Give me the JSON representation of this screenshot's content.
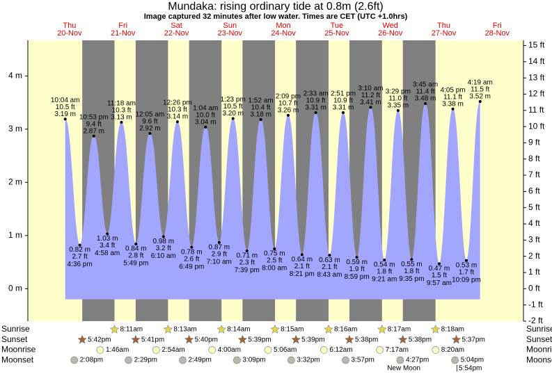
{
  "chart_data": {
    "type": "line",
    "title": "Mundaka: rising  ordinary tide at 0.8m (2.6ft)",
    "subtitle": "Image captured 32 minutes after low water. Times are CET (UTC +1.0hrs)",
    "days": [
      "Thu",
      "Fri",
      "Sat",
      "Sun",
      "Mon",
      "Tue",
      "Wed",
      "Thu",
      "Fri"
    ],
    "dates": [
      "20-Nov",
      "21-Nov",
      "22-Nov",
      "23-Nov",
      "24-Nov",
      "25-Nov",
      "26-Nov",
      "27-Nov",
      "28-Nov"
    ],
    "ylim": [
      -0.61,
      4.67
    ],
    "yticks": [
      {
        "value": 0,
        "label": "0 m"
      },
      {
        "value": 1,
        "label": "1 m"
      },
      {
        "value": 2,
        "label": "2 m"
      },
      {
        "value": 3,
        "label": "3 m"
      },
      {
        "value": 4,
        "label": "4 m"
      }
    ],
    "y2lim": [
      -2,
      15.32
    ],
    "y2ticks": [
      {
        "value": -2,
        "label": "-2 ft"
      },
      {
        "value": -1,
        "label": "-1 ft"
      },
      {
        "value": 0,
        "label": "0 ft"
      },
      {
        "value": 1,
        "label": "1 ft"
      },
      {
        "value": 2,
        "label": "2 ft"
      },
      {
        "value": 3,
        "label": "3 ft"
      },
      {
        "value": 4,
        "label": "4 ft"
      },
      {
        "value": 5,
        "label": "5 ft"
      },
      {
        "value": 6,
        "label": "6 ft"
      },
      {
        "value": 7,
        "label": "7 ft"
      },
      {
        "value": 8,
        "label": "8 ft"
      },
      {
        "value": 9,
        "label": "9 ft"
      },
      {
        "value": 10,
        "label": "10 ft"
      },
      {
        "value": 11,
        "label": "11 ft"
      },
      {
        "value": 12,
        "label": "12 ft"
      },
      {
        "value": 13,
        "label": "13 ft"
      },
      {
        "value": 14,
        "label": "14 ft"
      },
      {
        "value": 15,
        "label": "15 ft"
      }
    ],
    "tide": {
      "color": "#a3a6ff",
      "times": [
        "10:04 am",
        "4:36 pm",
        "10:53 pm",
        "4:58 am",
        "11:18 am",
        "5:49 pm",
        "12:05 am",
        "6:10 am",
        "12:26 pm",
        "6:49 pm",
        "1:04 am",
        "7:10 am",
        "1:23 pm",
        "7:39 pm",
        "1:52 am",
        "8:00 am",
        "2:09 pm",
        "8:21 pm",
        "2:33 am",
        "8:43 am",
        "2:51 pm",
        "8:59 pm",
        "3:10 am",
        "9:21 am",
        "3:29 pm",
        "9:35 pm",
        "3:45 am",
        "9:57 am",
        "4:05 pm",
        "10:09 pm",
        "4:19 am"
      ],
      "values": [
        3.19,
        0.82,
        2.87,
        1.03,
        3.13,
        0.84,
        2.92,
        0.98,
        3.14,
        0.78,
        3.04,
        0.87,
        3.2,
        0.71,
        3.18,
        0.75,
        3.26,
        0.64,
        3.31,
        0.63,
        3.31,
        0.59,
        3.41,
        0.54,
        3.35,
        0.55,
        3.48,
        0.47,
        3.38,
        0.53,
        3.52
      ],
      "value_labels": [
        "3.19 m",
        "0.82 m",
        "2.87 m",
        "1.03 m",
        "3.13 m",
        "0.84 m",
        "2.92 m",
        "0.98 m",
        "3.14 m",
        "0.78 m",
        "3.04 m",
        "0.87 m",
        "3.20 m",
        "0.71 m",
        "3.18 m",
        "0.75 m",
        "3.26 m",
        "0.64 m",
        "3.31 m",
        "0.63 m",
        "3.31 m",
        "0.59 m",
        "3.41 m",
        "0.54 m",
        "3.35 m",
        "0.55 m",
        "3.48 m",
        "0.47 m",
        "3.38 m",
        "0.53 m",
        "3.52 m"
      ],
      "ft_labels": [
        "10.5 ft",
        "2.7 ft",
        "9.4 ft",
        "3.4 ft",
        "10.3 ft",
        "2.8 ft",
        "9.6 ft",
        "3.2 ft",
        "10.3 ft",
        "2.6 ft",
        "10.0 ft",
        "2.9 ft",
        "10.5 ft",
        "2.3 ft",
        "10.4 ft",
        "2.5 ft",
        "10.7 ft",
        "2.1 ft",
        "10.9 ft",
        "2.1 ft",
        "10.9 ft",
        "1.9 ft",
        "11.2 ft",
        "1.8 ft",
        "11.0 ft",
        "1.8 ft",
        "11.4 ft",
        "1.5 ft",
        "11.1 ft",
        "1.7 ft",
        "11.5 ft"
      ]
    },
    "rows": [
      {
        "label": "Sunrise",
        "color": "#e8d44a",
        "times": [
          null,
          "8:11am",
          "8:13am",
          "8:14am",
          "8:15am",
          "8:16am",
          "8:17am",
          "8:18am",
          null
        ]
      },
      {
        "label": "Sunset",
        "color": "#a0663a",
        "times": [
          "5:42pm",
          "5:41pm",
          "5:40pm",
          "5:39pm",
          "5:39pm",
          "5:38pm",
          "5:38pm",
          "5:37pm",
          null
        ]
      },
      {
        "label": "Moonrise",
        "color": "#ffffc8",
        "times": [
          null,
          "1:46am",
          "2:54am",
          "4:00am",
          "5:06am",
          "6:12am",
          "7:17am",
          "8:20am",
          null
        ]
      },
      {
        "label": "Moonset",
        "color": "#b8b8b0",
        "times": [
          "2:08pm",
          "2:29pm",
          "2:49pm",
          "3:09pm",
          "3:32pm",
          "3:57pm",
          "4:27pm",
          "5:04pm",
          null
        ]
      }
    ],
    "moon_phase": "New Moon",
    "moon_phase_time": "5:54pm"
  }
}
